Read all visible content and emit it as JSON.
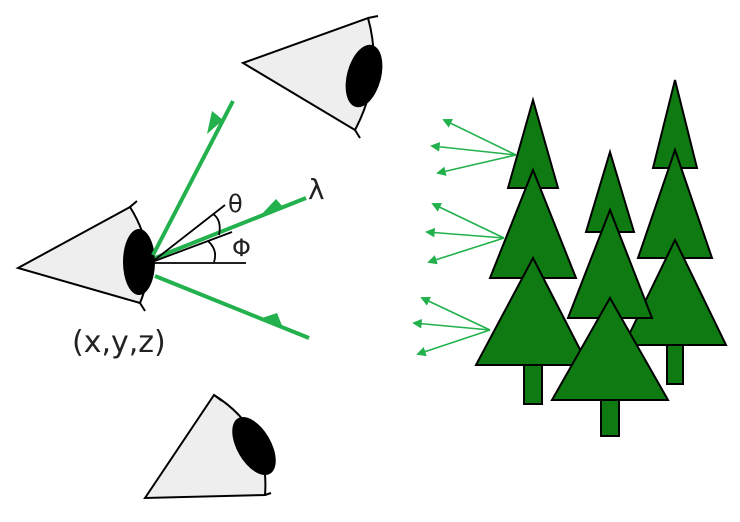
{
  "labels": {
    "position": "(x,y,z)",
    "lambda": "λ",
    "theta": "θ",
    "phi": "Φ"
  },
  "colors": {
    "ray": "#22b14c",
    "tree_fill": "#0f7a12",
    "tree_stroke": "#000000",
    "eye_cone": "#eeeeee",
    "pupil": "#000000"
  }
}
